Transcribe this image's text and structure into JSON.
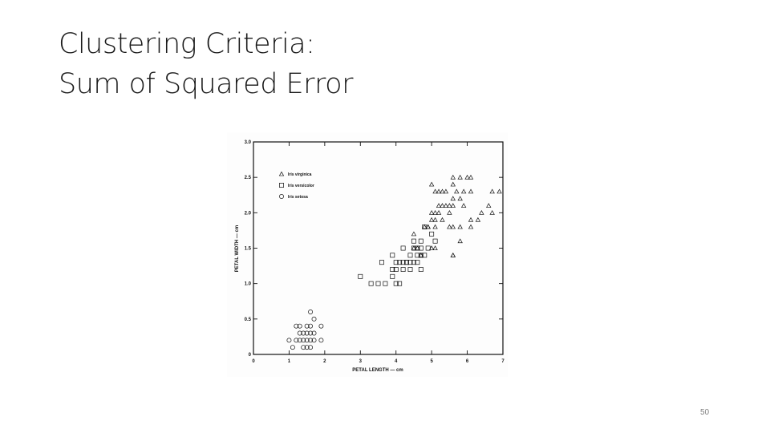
{
  "slide": {
    "title_line1": "Clustering Criteria:",
    "title_line2": "Sum of Squared Error",
    "page_number": "50"
  },
  "chart_data": {
    "type": "scatter",
    "title": "",
    "xlabel": "PETAL LENGTH — cm",
    "ylabel": "PETAL WIDTH — cm",
    "xlim": [
      0,
      7
    ],
    "ylim": [
      0,
      3.0
    ],
    "xticks": [
      0,
      1,
      2,
      3,
      4,
      5,
      6,
      7
    ],
    "yticks": [
      "0",
      "0.5",
      "1.0",
      "1.5",
      "2.0",
      "2.5",
      "3.0"
    ],
    "grid": false,
    "legend_position": "top-left",
    "colors": {
      "ink": "#111111",
      "background": "#fdfdfd"
    },
    "series": [
      {
        "name": "Iris virginica",
        "marker": "triangle",
        "points": [
          [
            5.0,
            2.4
          ],
          [
            5.1,
            2.3
          ],
          [
            5.2,
            2.3
          ],
          [
            5.3,
            2.3
          ],
          [
            5.4,
            2.3
          ],
          [
            5.6,
            2.5
          ],
          [
            5.6,
            2.4
          ],
          [
            5.7,
            2.3
          ],
          [
            5.8,
            2.5
          ],
          [
            5.9,
            2.3
          ],
          [
            6.0,
            2.5
          ],
          [
            6.1,
            2.5
          ],
          [
            6.1,
            2.3
          ],
          [
            6.7,
            2.3
          ],
          [
            6.9,
            2.3
          ],
          [
            5.6,
            2.2
          ],
          [
            5.8,
            2.2
          ],
          [
            6.6,
            2.1
          ],
          [
            5.2,
            2.1
          ],
          [
            5.3,
            2.1
          ],
          [
            5.4,
            2.1
          ],
          [
            5.5,
            2.1
          ],
          [
            5.6,
            2.1
          ],
          [
            5.9,
            2.1
          ],
          [
            5.0,
            2.0
          ],
          [
            5.1,
            2.0
          ],
          [
            5.2,
            2.0
          ],
          [
            5.5,
            2.0
          ],
          [
            6.4,
            2.0
          ],
          [
            6.7,
            2.0
          ],
          [
            5.0,
            1.9
          ],
          [
            5.1,
            1.9
          ],
          [
            5.3,
            1.9
          ],
          [
            6.1,
            1.9
          ],
          [
            6.3,
            1.9
          ],
          [
            4.8,
            1.8
          ],
          [
            4.9,
            1.8
          ],
          [
            5.1,
            1.8
          ],
          [
            5.5,
            1.8
          ],
          [
            5.6,
            1.8
          ],
          [
            5.8,
            1.8
          ],
          [
            6.1,
            1.8
          ],
          [
            4.9,
            1.8
          ],
          [
            4.5,
            1.7
          ],
          [
            5.8,
            1.6
          ],
          [
            5.0,
            1.5
          ],
          [
            4.5,
            1.5
          ],
          [
            4.6,
            1.5
          ],
          [
            5.1,
            1.5
          ],
          [
            5.6,
            1.4
          ],
          [
            5.6,
            1.4
          ],
          [
            4.7,
            1.4
          ],
          [
            4.7,
            1.4
          ]
        ]
      },
      {
        "name": "Iris versicolor",
        "marker": "square",
        "points": [
          [
            3.0,
            1.1
          ],
          [
            3.3,
            1.0
          ],
          [
            3.5,
            1.0
          ],
          [
            3.6,
            1.3
          ],
          [
            3.7,
            1.0
          ],
          [
            3.9,
            1.1
          ],
          [
            3.9,
            1.2
          ],
          [
            3.9,
            1.4
          ],
          [
            4.0,
            1.0
          ],
          [
            4.0,
            1.2
          ],
          [
            4.0,
            1.3
          ],
          [
            4.1,
            1.0
          ],
          [
            4.1,
            1.3
          ],
          [
            4.2,
            1.2
          ],
          [
            4.2,
            1.3
          ],
          [
            4.3,
            1.3
          ],
          [
            4.4,
            1.2
          ],
          [
            4.4,
            1.3
          ],
          [
            4.4,
            1.4
          ],
          [
            4.5,
            1.3
          ],
          [
            4.5,
            1.5
          ],
          [
            4.5,
            1.6
          ],
          [
            4.6,
            1.3
          ],
          [
            4.6,
            1.5
          ],
          [
            4.7,
            1.2
          ],
          [
            4.7,
            1.4
          ],
          [
            4.7,
            1.5
          ],
          [
            4.7,
            1.6
          ],
          [
            4.8,
            1.4
          ],
          [
            4.8,
            1.8
          ],
          [
            4.9,
            1.5
          ],
          [
            5.0,
            1.7
          ],
          [
            5.1,
            1.6
          ],
          [
            4.2,
            1.5
          ],
          [
            4.6,
            1.4
          ],
          [
            4.3,
            1.3
          ]
        ]
      },
      {
        "name": "Iris setosa",
        "marker": "circle",
        "points": [
          [
            1.0,
            0.2
          ],
          [
            1.1,
            0.1
          ],
          [
            1.2,
            0.2
          ],
          [
            1.3,
            0.2
          ],
          [
            1.3,
            0.3
          ],
          [
            1.3,
            0.4
          ],
          [
            1.4,
            0.1
          ],
          [
            1.4,
            0.2
          ],
          [
            1.4,
            0.3
          ],
          [
            1.5,
            0.1
          ],
          [
            1.5,
            0.2
          ],
          [
            1.5,
            0.4
          ],
          [
            1.6,
            0.2
          ],
          [
            1.6,
            0.4
          ],
          [
            1.6,
            0.6
          ],
          [
            1.7,
            0.3
          ],
          [
            1.7,
            0.5
          ],
          [
            1.9,
            0.2
          ],
          [
            1.9,
            0.4
          ],
          [
            1.5,
            0.3
          ],
          [
            1.6,
            0.1
          ],
          [
            1.6,
            0.3
          ],
          [
            1.7,
            0.2
          ],
          [
            1.2,
            0.4
          ]
        ]
      }
    ]
  }
}
